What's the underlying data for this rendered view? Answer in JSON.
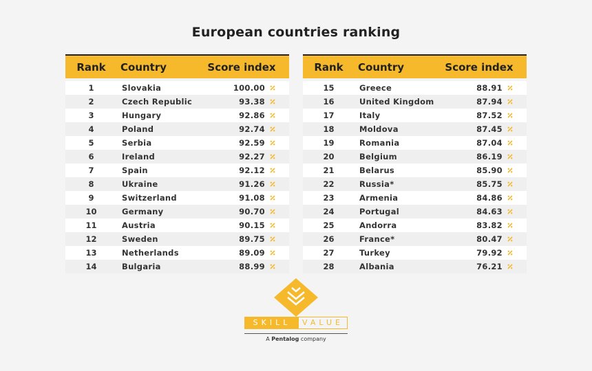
{
  "title": "European countries ranking",
  "headers": {
    "rank": "Rank",
    "country": "Country",
    "score": "Score index"
  },
  "colors": {
    "accent": "#f5b92b",
    "background": "#f4f4f4"
  },
  "left_table": [
    {
      "rank": "1",
      "country": "Slovakia",
      "score": "100.00"
    },
    {
      "rank": "2",
      "country": "Czech Republic",
      "score": "93.38"
    },
    {
      "rank": "3",
      "country": "Hungary",
      "score": "92.86"
    },
    {
      "rank": "4",
      "country": "Poland",
      "score": "92.74"
    },
    {
      "rank": "5",
      "country": "Serbia",
      "score": "92.59"
    },
    {
      "rank": "6",
      "country": "Ireland",
      "score": "92.27"
    },
    {
      "rank": "7",
      "country": "Spain",
      "score": "92.12"
    },
    {
      "rank": "8",
      "country": "Ukraine",
      "score": "91.26"
    },
    {
      "rank": "9",
      "country": "Switzerland",
      "score": "91.08"
    },
    {
      "rank": "10",
      "country": "Germany",
      "score": "90.70"
    },
    {
      "rank": "11",
      "country": "Austria",
      "score": "90.15"
    },
    {
      "rank": "12",
      "country": "Sweden",
      "score": "89.75"
    },
    {
      "rank": "13",
      "country": "Netherlands",
      "score": "89.09"
    },
    {
      "rank": "14",
      "country": "Bulgaria",
      "score": "88.99"
    }
  ],
  "right_table": [
    {
      "rank": "15",
      "country": "Greece",
      "score": "88.91"
    },
    {
      "rank": "16",
      "country": "United Kingdom",
      "score": "87.94"
    },
    {
      "rank": "17",
      "country": "Italy",
      "score": "87.52"
    },
    {
      "rank": "18",
      "country": "Moldova",
      "score": "87.45"
    },
    {
      "rank": "19",
      "country": "Romania",
      "score": "87.04"
    },
    {
      "rank": "20",
      "country": "Belgium",
      "score": "86.19"
    },
    {
      "rank": "21",
      "country": "Belarus",
      "score": "85.90"
    },
    {
      "rank": "22",
      "country": "Russia*",
      "score": "85.75"
    },
    {
      "rank": "23",
      "country": "Armenia",
      "score": "84.86"
    },
    {
      "rank": "24",
      "country": "Portugal",
      "score": "84.63"
    },
    {
      "rank": "25",
      "country": "Andorra",
      "score": "83.82"
    },
    {
      "rank": "26",
      "country": "France*",
      "score": "80.47"
    },
    {
      "rank": "27",
      "country": "Turkey",
      "score": "79.92"
    },
    {
      "rank": "28",
      "country": "Albania",
      "score": "76.21"
    }
  ],
  "logo": {
    "word_left": "SKILL",
    "word_right": "VALUE",
    "tagline_prefix": "A ",
    "tagline_brand": "Pentalog",
    "tagline_suffix": " company"
  }
}
